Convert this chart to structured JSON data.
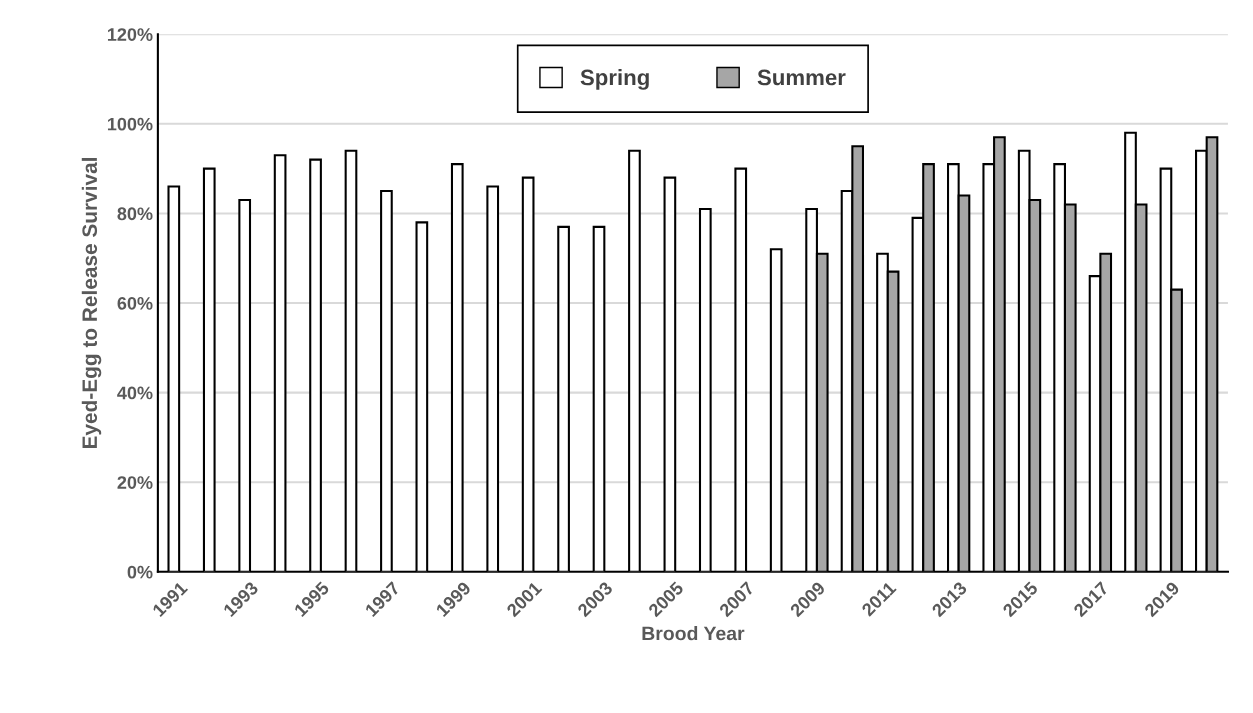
{
  "chart_data": {
    "type": "bar",
    "xlabel": "Brood Year",
    "ylabel": "Eyed-Egg to Release Survival",
    "categories": [
      "1991",
      null,
      "1993",
      null,
      "1995",
      null,
      "1997",
      null,
      "1999",
      null,
      "2001",
      null,
      "2003",
      null,
      "2005",
      null,
      "2007",
      null,
      "2009",
      null,
      "2011",
      null,
      "2013",
      null,
      "2015",
      null,
      "2017",
      null,
      "2019",
      null
    ],
    "series": [
      {
        "name": "Spring",
        "color": "#ffffff",
        "values": [
          86,
          90,
          83,
          93,
          92,
          94,
          85,
          78,
          91,
          86,
          88,
          77,
          77,
          94,
          88,
          81,
          90,
          72,
          81,
          85,
          71,
          79,
          91,
          91,
          94,
          91,
          66,
          98,
          90,
          94
        ]
      },
      {
        "name": "Summer",
        "color": "#a6a6a6",
        "values": [
          null,
          null,
          null,
          null,
          null,
          null,
          null,
          null,
          null,
          null,
          null,
          null,
          null,
          null,
          null,
          null,
          null,
          null,
          71,
          95,
          67,
          91,
          84,
          97,
          83,
          82,
          71,
          82,
          63,
          97
        ]
      }
    ],
    "ylim": [
      0,
      120
    ],
    "yticks": [
      {
        "value": 0,
        "label": "0%"
      },
      {
        "value": 20,
        "label": "20%"
      },
      {
        "value": 40,
        "label": "40%"
      },
      {
        "value": 60,
        "label": "60%"
      },
      {
        "value": 80,
        "label": "80%"
      },
      {
        "value": 100,
        "label": "100%"
      },
      {
        "value": 120,
        "label": "120%"
      }
    ],
    "grid": "y",
    "legend": "top"
  }
}
